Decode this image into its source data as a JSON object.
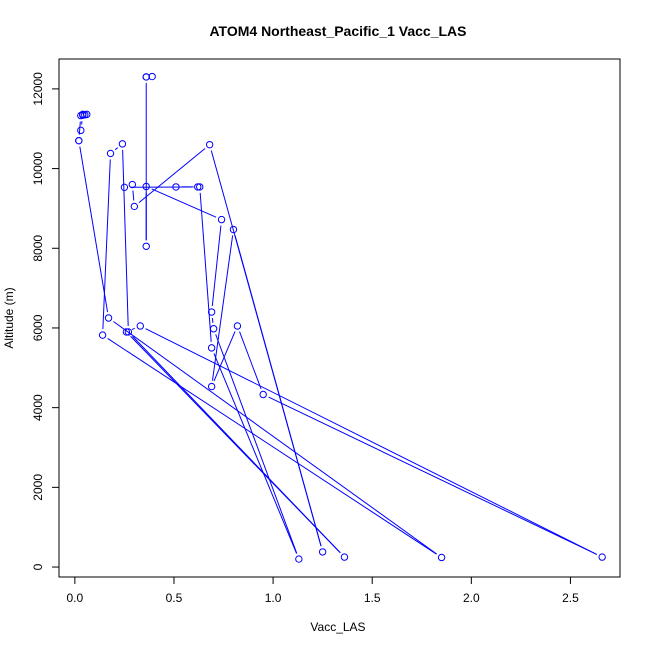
{
  "chart_data": {
    "type": "line",
    "title": "ATOM4 Northeast_Pacific_1 Vacc_LAS",
    "xlabel": "Vacc_LAS",
    "ylabel": "Altitude (m)",
    "xlim": [
      -0.08,
      2.75
    ],
    "ylim": [
      -250,
      12750
    ],
    "xticks": [
      0.0,
      0.5,
      1.0,
      1.5,
      2.0,
      2.5
    ],
    "xtick_labels": [
      "0.0",
      "0.5",
      "1.0",
      "1.5",
      "2.0",
      "2.5"
    ],
    "yticks": [
      0,
      2000,
      4000,
      6000,
      8000,
      10000,
      12000
    ],
    "ytick_labels": [
      "0",
      "2000",
      "4000",
      "6000",
      "8000",
      "10000",
      "12000"
    ],
    "grid": false,
    "color": "#0000ff",
    "series": [
      {
        "x": [
          0.36,
          0.39,
          0.36,
          0.36,
          0.36,
          0.74,
          0.69,
          0.7,
          1.13,
          0.69,
          0.63,
          0.51,
          0.62,
          0.25,
          0.29,
          0.3,
          0.68,
          1.25,
          0.8,
          0.69,
          0.82,
          0.95,
          2.66,
          0.33,
          0.26,
          1.36,
          0.27,
          0.24,
          0.18,
          0.14,
          1.85,
          0.17,
          0.02,
          0.03,
          0.04,
          0.05,
          0.06,
          0.04,
          0.03,
          0.02
        ],
        "y": [
          12300,
          12310,
          12300,
          8050,
          9550,
          8720,
          6400,
          5980,
          200,
          5500,
          9540,
          9540,
          9540,
          9530,
          9600,
          9050,
          10600,
          380,
          8470,
          4530,
          6050,
          4330,
          250,
          6050,
          5900,
          250,
          5900,
          10620,
          10380,
          5820,
          240,
          6250,
          10700,
          10960,
          11340,
          11350,
          11360,
          11360,
          11330,
          10700
        ]
      }
    ]
  }
}
